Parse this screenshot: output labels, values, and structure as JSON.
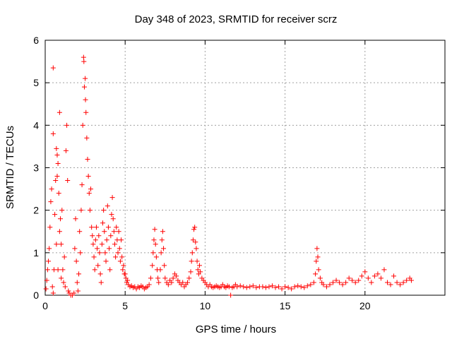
{
  "chart_data": {
    "type": "scatter",
    "title": "Day 348 of 2023, SRMTID for receiver scrz",
    "xlabel": "GPS time / hours",
    "ylabel": "SRMTID / TECUs",
    "xlim": [
      0,
      25
    ],
    "ylim": [
      0,
      6
    ],
    "xticks": [
      0,
      5,
      10,
      15,
      20
    ],
    "yticks": [
      0,
      1,
      2,
      3,
      4,
      5,
      6
    ],
    "grid": true,
    "marker": "+",
    "series": [
      {
        "name": "SRMTID",
        "color": "#ff0000",
        "points": [
          [
            0.05,
            0.15
          ],
          [
            0.1,
            0.35
          ],
          [
            0.15,
            0.6
          ],
          [
            0.2,
            0.8
          ],
          [
            0.25,
            1.1
          ],
          [
            0.3,
            1.6
          ],
          [
            0.35,
            2.2
          ],
          [
            0.4,
            2.5
          ],
          [
            0.45,
            0.2
          ],
          [
            0.5,
            5.35
          ],
          [
            0.5,
            3.8
          ],
          [
            0.5,
            0.05
          ],
          [
            0.55,
            0.6
          ],
          [
            0.6,
            1.9
          ],
          [
            0.65,
            2.7
          ],
          [
            0.7,
            3.45
          ],
          [
            0.7,
            1.2
          ],
          [
            0.75,
            3.3
          ],
          [
            0.75,
            2.8
          ],
          [
            0.8,
            3.1
          ],
          [
            0.8,
            0.6
          ],
          [
            0.85,
            2.4
          ],
          [
            0.9,
            4.3
          ],
          [
            0.9,
            1.5
          ],
          [
            0.95,
            1.8
          ],
          [
            1.0,
            1.2
          ],
          [
            1.0,
            0.4
          ],
          [
            1.05,
            2.0
          ],
          [
            1.1,
            0.6
          ],
          [
            1.15,
            0.3
          ],
          [
            1.2,
            0.9
          ],
          [
            1.25,
            0.2
          ],
          [
            1.3,
            3.4
          ],
          [
            1.35,
            4.0
          ],
          [
            1.4,
            2.7
          ],
          [
            1.45,
            0.1
          ],
          [
            1.5,
            0.05
          ],
          [
            1.6,
            0.0
          ],
          [
            1.7,
            0.0
          ],
          [
            1.8,
            0.05
          ],
          [
            1.85,
            1.1
          ],
          [
            1.9,
            1.8
          ],
          [
            1.95,
            0.8
          ],
          [
            2.0,
            0.3
          ],
          [
            2.05,
            0.1
          ],
          [
            2.1,
            0.5
          ],
          [
            2.15,
            1.5
          ],
          [
            2.2,
            1.0
          ],
          [
            2.25,
            2.0
          ],
          [
            2.3,
            2.6
          ],
          [
            2.35,
            4.0
          ],
          [
            2.4,
            5.6
          ],
          [
            2.42,
            5.5
          ],
          [
            2.45,
            4.9
          ],
          [
            2.5,
            5.1
          ],
          [
            2.52,
            4.6
          ],
          [
            2.55,
            4.3
          ],
          [
            2.6,
            3.7
          ],
          [
            2.65,
            3.2
          ],
          [
            2.7,
            2.8
          ],
          [
            2.75,
            2.4
          ],
          [
            2.8,
            2.0
          ],
          [
            2.85,
            2.5
          ],
          [
            2.9,
            1.6
          ],
          [
            2.95,
            1.4
          ],
          [
            3.0,
            1.2
          ],
          [
            3.05,
            0.9
          ],
          [
            3.1,
            0.6
          ],
          [
            3.15,
            1.3
          ],
          [
            3.2,
            1.6
          ],
          [
            3.25,
            1.1
          ],
          [
            3.3,
            0.7
          ],
          [
            3.35,
            1.4
          ],
          [
            3.4,
            1.0
          ],
          [
            3.45,
            0.5
          ],
          [
            3.5,
            0.3
          ],
          [
            3.55,
            1.2
          ],
          [
            3.6,
            1.7
          ],
          [
            3.65,
            2.0
          ],
          [
            3.7,
            1.5
          ],
          [
            3.75,
            1.0
          ],
          [
            3.8,
            0.8
          ],
          [
            3.85,
            1.3
          ],
          [
            3.9,
            2.1
          ],
          [
            3.95,
            1.6
          ],
          [
            4.0,
            1.1
          ],
          [
            4.05,
            0.6
          ],
          [
            4.1,
            1.4
          ],
          [
            4.15,
            1.9
          ],
          [
            4.2,
            2.3
          ],
          [
            4.25,
            1.8
          ],
          [
            4.3,
            1.5
          ],
          [
            4.35,
            1.2
          ],
          [
            4.4,
            0.9
          ],
          [
            4.45,
            1.6
          ],
          [
            4.5,
            1.3
          ],
          [
            4.55,
            1.0
          ],
          [
            4.6,
            1.5
          ],
          [
            4.65,
            1.1
          ],
          [
            4.7,
            0.8
          ],
          [
            4.75,
            1.3
          ],
          [
            4.8,
            0.9
          ],
          [
            4.85,
            0.6
          ],
          [
            4.9,
            0.7
          ],
          [
            4.95,
            0.5
          ],
          [
            5.0,
            0.5
          ],
          [
            5.05,
            0.4
          ],
          [
            5.1,
            0.3
          ],
          [
            5.15,
            0.35
          ],
          [
            5.2,
            0.25
          ],
          [
            5.3,
            0.2
          ],
          [
            5.4,
            0.22
          ],
          [
            5.5,
            0.18
          ],
          [
            5.6,
            0.2
          ],
          [
            5.7,
            0.15
          ],
          [
            5.8,
            0.2
          ],
          [
            5.9,
            0.18
          ],
          [
            6.0,
            0.22
          ],
          [
            6.1,
            0.2
          ],
          [
            6.2,
            0.15
          ],
          [
            6.3,
            0.18
          ],
          [
            6.4,
            0.2
          ],
          [
            6.5,
            0.25
          ],
          [
            6.6,
            0.4
          ],
          [
            6.7,
            0.7
          ],
          [
            6.75,
            1.0
          ],
          [
            6.8,
            1.3
          ],
          [
            6.85,
            1.55
          ],
          [
            6.9,
            1.2
          ],
          [
            6.95,
            0.9
          ],
          [
            7.0,
            0.6
          ],
          [
            7.05,
            0.4
          ],
          [
            7.1,
            0.3
          ],
          [
            7.2,
            0.6
          ],
          [
            7.25,
            1.0
          ],
          [
            7.3,
            1.3
          ],
          [
            7.35,
            1.5
          ],
          [
            7.4,
            1.1
          ],
          [
            7.45,
            0.7
          ],
          [
            7.5,
            0.4
          ],
          [
            7.6,
            0.3
          ],
          [
            7.7,
            0.25
          ],
          [
            7.8,
            0.35
          ],
          [
            7.9,
            0.3
          ],
          [
            8.0,
            0.4
          ],
          [
            8.1,
            0.5
          ],
          [
            8.2,
            0.45
          ],
          [
            8.3,
            0.35
          ],
          [
            8.4,
            0.3
          ],
          [
            8.5,
            0.25
          ],
          [
            8.6,
            0.3
          ],
          [
            8.7,
            0.2
          ],
          [
            8.8,
            0.25
          ],
          [
            8.9,
            0.3
          ],
          [
            9.0,
            0.4
          ],
          [
            9.1,
            0.55
          ],
          [
            9.15,
            0.8
          ],
          [
            9.2,
            1.0
          ],
          [
            9.25,
            1.3
          ],
          [
            9.3,
            1.55
          ],
          [
            9.35,
            1.6
          ],
          [
            9.4,
            1.25
          ],
          [
            9.45,
            1.1
          ],
          [
            9.5,
            0.8
          ],
          [
            9.55,
            0.6
          ],
          [
            9.6,
            0.5
          ],
          [
            9.65,
            0.7
          ],
          [
            9.7,
            0.55
          ],
          [
            9.8,
            0.4
          ],
          [
            9.9,
            0.35
          ],
          [
            10.0,
            0.3
          ],
          [
            10.1,
            0.25
          ],
          [
            10.2,
            0.2
          ],
          [
            10.3,
            0.25
          ],
          [
            10.4,
            0.2
          ],
          [
            10.5,
            0.18
          ],
          [
            10.6,
            0.2
          ],
          [
            10.7,
            0.22
          ],
          [
            10.8,
            0.2
          ],
          [
            10.9,
            0.18
          ],
          [
            11.0,
            0.2
          ],
          [
            11.1,
            0.25
          ],
          [
            11.2,
            0.2
          ],
          [
            11.3,
            0.18
          ],
          [
            11.4,
            0.22
          ],
          [
            11.5,
            0.2
          ],
          [
            11.6,
            0.0
          ],
          [
            11.7,
            0.18
          ],
          [
            11.8,
            0.2
          ],
          [
            11.9,
            0.25
          ],
          [
            12.0,
            0.2
          ],
          [
            12.2,
            0.22
          ],
          [
            12.4,
            0.2
          ],
          [
            12.6,
            0.18
          ],
          [
            12.8,
            0.2
          ],
          [
            13.0,
            0.22
          ],
          [
            13.2,
            0.18
          ],
          [
            13.4,
            0.2
          ],
          [
            13.6,
            0.2
          ],
          [
            13.8,
            0.18
          ],
          [
            14.0,
            0.2
          ],
          [
            14.2,
            0.22
          ],
          [
            14.4,
            0.18
          ],
          [
            14.6,
            0.2
          ],
          [
            14.8,
            0.15
          ],
          [
            15.0,
            0.2
          ],
          [
            15.2,
            0.18
          ],
          [
            15.4,
            0.15
          ],
          [
            15.6,
            0.2
          ],
          [
            15.8,
            0.22
          ],
          [
            16.0,
            0.2
          ],
          [
            16.2,
            0.18
          ],
          [
            16.4,
            0.22
          ],
          [
            16.6,
            0.25
          ],
          [
            16.8,
            0.3
          ],
          [
            16.9,
            0.5
          ],
          [
            16.95,
            0.8
          ],
          [
            17.0,
            1.1
          ],
          [
            17.05,
            0.9
          ],
          [
            17.1,
            0.6
          ],
          [
            17.2,
            0.4
          ],
          [
            17.3,
            0.3
          ],
          [
            17.4,
            0.25
          ],
          [
            17.6,
            0.2
          ],
          [
            17.8,
            0.25
          ],
          [
            18.0,
            0.3
          ],
          [
            18.2,
            0.35
          ],
          [
            18.4,
            0.3
          ],
          [
            18.6,
            0.25
          ],
          [
            18.8,
            0.3
          ],
          [
            19.0,
            0.4
          ],
          [
            19.2,
            0.35
          ],
          [
            19.4,
            0.3
          ],
          [
            19.6,
            0.35
          ],
          [
            19.8,
            0.45
          ],
          [
            20.0,
            0.55
          ],
          [
            20.2,
            0.4
          ],
          [
            20.4,
            0.3
          ],
          [
            20.6,
            0.45
          ],
          [
            20.8,
            0.5
          ],
          [
            21.0,
            0.4
          ],
          [
            21.2,
            0.6
          ],
          [
            21.4,
            0.3
          ],
          [
            21.6,
            0.25
          ],
          [
            21.8,
            0.45
          ],
          [
            22.0,
            0.3
          ],
          [
            22.2,
            0.25
          ],
          [
            22.4,
            0.3
          ],
          [
            22.6,
            0.35
          ],
          [
            22.8,
            0.4
          ],
          [
            22.9,
            0.35
          ]
        ]
      }
    ]
  }
}
